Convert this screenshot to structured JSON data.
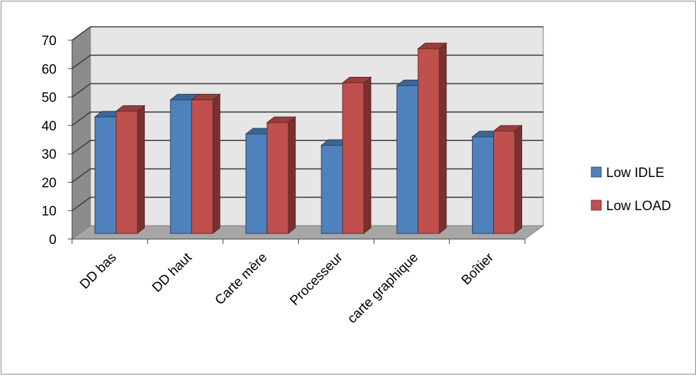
{
  "chart_data": {
    "type": "bar",
    "categories": [
      "DD bas",
      "DD haut",
      "Carte mère",
      "Processeur",
      "carte graphique",
      "Boîtier"
    ],
    "series": [
      {
        "name": "Low IDLE",
        "values": [
          41,
          47,
          35,
          31,
          52,
          34
        ],
        "color": "#4f81bd"
      },
      {
        "name": "Low LOAD",
        "values": [
          43,
          47,
          39,
          53,
          65,
          36
        ],
        "color": "#c0504d"
      }
    ],
    "yticks": [
      "0",
      "10",
      "20",
      "30",
      "40",
      "50",
      "60",
      "70"
    ],
    "ylim": [
      0,
      70
    ],
    "grid": true,
    "legend_position": "right",
    "style": "3d-clustered-column"
  }
}
